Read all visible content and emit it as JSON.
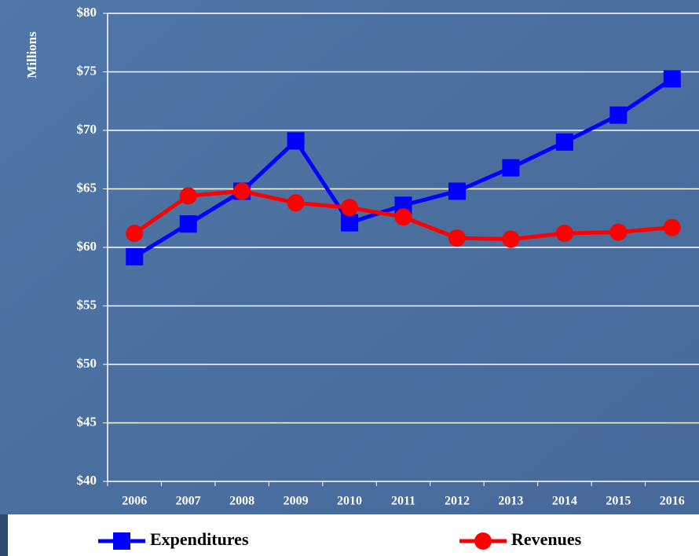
{
  "chart_data": {
    "type": "line",
    "y_label": "Millions",
    "categories": [
      "2006",
      "2007",
      "2008",
      "2009",
      "2010",
      "2011",
      "2012",
      "2013",
      "2014",
      "2015",
      "2016"
    ],
    "series": [
      {
        "name": "Expenditures",
        "color": "#0000ff",
        "marker": "square",
        "values": [
          59.2,
          62.0,
          64.8,
          69.1,
          62.1,
          63.6,
          64.8,
          66.8,
          69.0,
          71.3,
          74.4
        ]
      },
      {
        "name": "Revenues",
        "color": "#ff0000",
        "marker": "circle",
        "values": [
          61.2,
          64.4,
          64.8,
          63.8,
          63.4,
          62.6,
          60.8,
          60.7,
          61.2,
          61.3,
          61.7
        ]
      }
    ],
    "ylim": [
      40,
      80
    ],
    "yticks": [
      {
        "value": 40,
        "label": "$40"
      },
      {
        "value": 45,
        "label": "$45"
      },
      {
        "value": 50,
        "label": "$50"
      },
      {
        "value": 55,
        "label": "$55"
      },
      {
        "value": 60,
        "label": "$60"
      },
      {
        "value": 65,
        "label": "$65"
      },
      {
        "value": 70,
        "label": "$70"
      },
      {
        "value": 75,
        "label": "$75"
      },
      {
        "value": 80,
        "label": "$80"
      }
    ],
    "grid": true,
    "legend": "bottom"
  }
}
